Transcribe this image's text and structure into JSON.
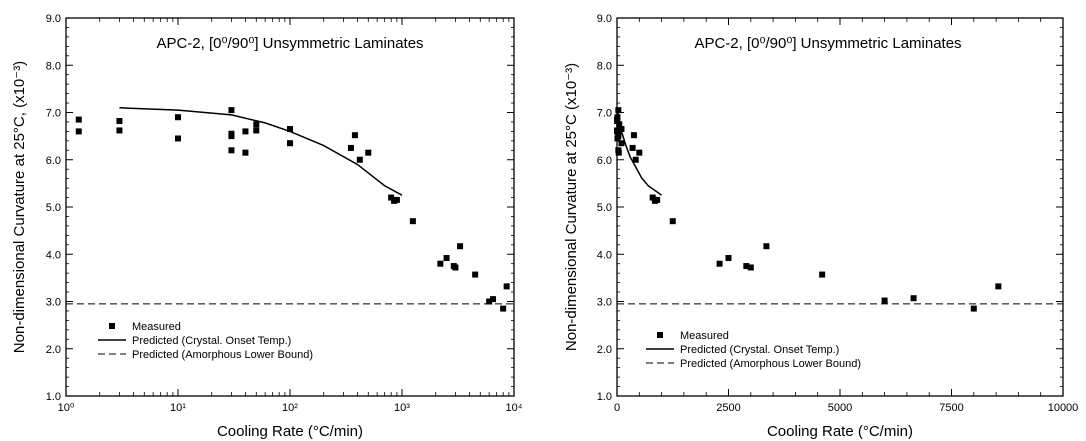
{
  "chart_data": [
    {
      "type": "scatter",
      "title": "APC-2, [0⁰/90⁰] Unsymmetric Laminates",
      "xlabel": "Cooling Rate (°C/min)",
      "ylabel": "Non-dimensional Curvature at 25°C, (x10⁻³)",
      "xscale": "log",
      "xlim": [
        1,
        10000
      ],
      "ylim": [
        1.0,
        9.0
      ],
      "x_tick_labels": [
        "10⁰",
        "10¹",
        "10²",
        "10³",
        "10⁴"
      ],
      "y_tick_labels": [
        "1.0",
        "2.0",
        "3.0",
        "4.0",
        "5.0",
        "6.0",
        "7.0",
        "8.0",
        "9.0"
      ],
      "grid": false,
      "legend_position": "bottom-left",
      "series": [
        {
          "name": "Measured",
          "kind": "markers",
          "points": [
            [
              1.3,
              6.85
            ],
            [
              1.3,
              6.6
            ],
            [
              3,
              6.82
            ],
            [
              3,
              6.62
            ],
            [
              10,
              6.9
            ],
            [
              10,
              6.45
            ],
            [
              30,
              7.05
            ],
            [
              30,
              6.55
            ],
            [
              30,
              6.5
            ],
            [
              30,
              6.2
            ],
            [
              40,
              6.6
            ],
            [
              40,
              6.15
            ],
            [
              50,
              6.75
            ],
            [
              50,
              6.62
            ],
            [
              100,
              6.65
            ],
            [
              100,
              6.35
            ],
            [
              350,
              6.25
            ],
            [
              380,
              6.52
            ],
            [
              420,
              6.0
            ],
            [
              500,
              6.15
            ],
            [
              800,
              5.2
            ],
            [
              850,
              5.13
            ],
            [
              900,
              5.15
            ],
            [
              1250,
              4.7
            ],
            [
              2200,
              3.8
            ],
            [
              2500,
              3.92
            ],
            [
              2900,
              3.75
            ],
            [
              3000,
              3.72
            ],
            [
              3300,
              4.17
            ],
            [
              4500,
              3.57
            ],
            [
              6000,
              3.0
            ],
            [
              6500,
              3.05
            ],
            [
              8000,
              2.85
            ],
            [
              8600,
              3.32
            ]
          ]
        },
        {
          "name": "Predicted (Crystal. Onset Temp.)",
          "kind": "solid-line",
          "points": [
            [
              3,
              7.1
            ],
            [
              10,
              7.05
            ],
            [
              30,
              6.95
            ],
            [
              60,
              6.78
            ],
            [
              100,
              6.6
            ],
            [
              200,
              6.3
            ],
            [
              400,
              5.9
            ],
            [
              700,
              5.45
            ],
            [
              1000,
              5.25
            ]
          ]
        },
        {
          "name": "Predicted (Amorphous Lower Bound)",
          "kind": "dashed-line",
          "points": [
            [
              1,
              2.95
            ],
            [
              10000,
              2.95
            ]
          ]
        }
      ]
    },
    {
      "type": "scatter",
      "title": "APC-2, [0⁰/90⁰] Unsymmetric Laminates",
      "xlabel": "Cooling Rate (°C/min)",
      "ylabel": "Non-dimensional Curvature at 25°C (x10⁻³)",
      "xscale": "linear",
      "xlim": [
        0,
        10000
      ],
      "ylim": [
        1.0,
        9.0
      ],
      "x_tick_labels": [
        "0",
        "2500",
        "5000",
        "7500",
        "10000"
      ],
      "y_tick_labels": [
        "1.0",
        "2.0",
        "3.0",
        "4.0",
        "5.0",
        "6.0",
        "7.0",
        "8.0",
        "9.0"
      ],
      "grid": false,
      "legend_position": "bottom-left",
      "series": [
        {
          "name": "Measured",
          "kind": "markers",
          "points": [
            [
              1.3,
              6.85
            ],
            [
              1.3,
              6.6
            ],
            [
              3,
              6.82
            ],
            [
              3,
              6.62
            ],
            [
              10,
              6.9
            ],
            [
              10,
              6.45
            ],
            [
              30,
              7.05
            ],
            [
              30,
              6.55
            ],
            [
              30,
              6.5
            ],
            [
              30,
              6.2
            ],
            [
              40,
              6.6
            ],
            [
              40,
              6.15
            ],
            [
              50,
              6.75
            ],
            [
              50,
              6.62
            ],
            [
              100,
              6.65
            ],
            [
              100,
              6.35
            ],
            [
              350,
              6.25
            ],
            [
              380,
              6.52
            ],
            [
              420,
              6.0
            ],
            [
              500,
              6.15
            ],
            [
              800,
              5.2
            ],
            [
              850,
              5.13
            ],
            [
              900,
              5.15
            ],
            [
              1250,
              4.7
            ],
            [
              2300,
              3.8
            ],
            [
              2500,
              3.92
            ],
            [
              2900,
              3.75
            ],
            [
              3000,
              3.72
            ],
            [
              3350,
              4.17
            ],
            [
              4600,
              3.57
            ],
            [
              6000,
              3.02
            ],
            [
              6650,
              3.07
            ],
            [
              8000,
              2.85
            ],
            [
              8550,
              3.32
            ]
          ]
        },
        {
          "name": "Predicted (Crystal. Onset Temp.)",
          "kind": "solid-line",
          "points": [
            [
              0,
              7.1
            ],
            [
              30,
              6.95
            ],
            [
              100,
              6.6
            ],
            [
              200,
              6.3
            ],
            [
              300,
              6.05
            ],
            [
              400,
              5.88
            ],
            [
              550,
              5.62
            ],
            [
              700,
              5.45
            ],
            [
              1000,
              5.25
            ]
          ]
        },
        {
          "name": "Predicted (Amorphous Lower Bound)",
          "kind": "dashed-line",
          "points": [
            [
              0,
              2.95
            ],
            [
              10000,
              2.95
            ]
          ]
        }
      ]
    }
  ]
}
